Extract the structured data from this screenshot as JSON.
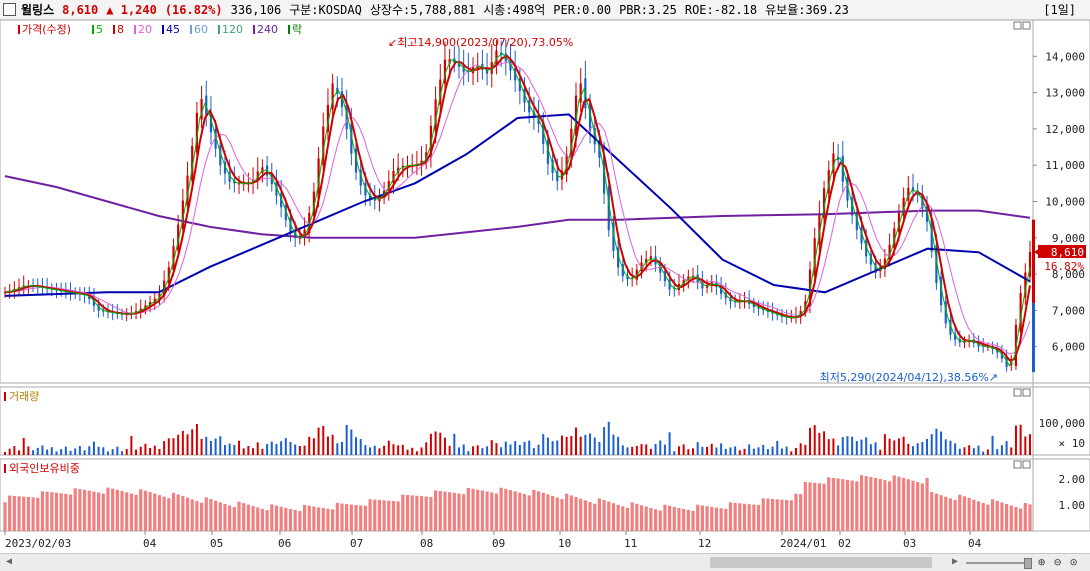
{
  "header": {
    "name": "윌링스",
    "price": "8,610",
    "change": "▲ 1,240",
    "change_pct": "(16.82%)",
    "volume": "336,106",
    "market": "구분:KOSDAQ",
    "shares": "상장수:5,788,881",
    "mcap": "시총:498억",
    "per": "PER:0.00",
    "pbr": "PBR:3.25",
    "roe": "ROE:-82.18",
    "reserve": "유보율:369.23",
    "period": "[1일]"
  },
  "legend": [
    {
      "text": "가격(수정)",
      "color": "#d00000"
    },
    {
      "text": "5",
      "color": "#00b000"
    },
    {
      "text": "8",
      "color": "#d00000"
    },
    {
      "text": "20",
      "color": "#e060e0"
    },
    {
      "text": "45",
      "color": "#0000b0"
    },
    {
      "text": "60",
      "color": "#70a0d0"
    },
    {
      "text": "120",
      "color": "#40a080"
    },
    {
      "text": "240",
      "color": "#7020a0"
    },
    {
      "text": "락",
      "color": "#008000"
    }
  ],
  "annotations": {
    "high": "최고14,900(2023/07/20),73.05%",
    "low": "최저5,290(2024/04/12),38.56%"
  },
  "price_tags": {
    "price": "8,610",
    "pct": "16.82%"
  },
  "panels": {
    "volume_title": "거래량",
    "volume_ticks": [
      "100,000",
      "× 10"
    ],
    "foreign_title": "외국인보유비중",
    "foreign_ticks": [
      "2.00",
      "1.00"
    ]
  },
  "colors": {
    "up": "#d00000",
    "down": "#1a5fd0",
    "ma240": "#7020a0",
    "ma45": "#0000b0",
    "ma8": "#d00000",
    "ma5": "#00b000",
    "foreign_bar": "#f08080"
  },
  "chart_data": {
    "type": "candlestick",
    "y_ticks": [
      "14,000",
      "13,000",
      "12,000",
      "11,000",
      "10,000",
      "9,000",
      "8,000",
      "7,000",
      "6,000"
    ],
    "ylim": [
      5000,
      15000
    ],
    "x_ticks": [
      "2023/02/03",
      "04",
      "05",
      "06",
      "07",
      "08",
      "09",
      "10",
      "11",
      "12",
      "2024/01",
      "02",
      "03",
      "04"
    ],
    "price_path": [
      [
        0,
        7500
      ],
      [
        2,
        7700
      ],
      [
        4,
        7600
      ],
      [
        6,
        7500
      ],
      [
        8,
        7400
      ],
      [
        9,
        7000
      ],
      [
        11,
        6900
      ],
      [
        12,
        6900
      ],
      [
        13,
        7000
      ],
      [
        14,
        7200
      ],
      [
        15,
        7400
      ],
      [
        16,
        8200
      ],
      [
        17,
        9500
      ],
      [
        18,
        11000
      ],
      [
        19,
        13000
      ],
      [
        20,
        12000
      ],
      [
        21,
        11000
      ],
      [
        22,
        10500
      ],
      [
        24,
        10500
      ],
      [
        25,
        11000
      ],
      [
        26,
        10500
      ],
      [
        27,
        9800
      ],
      [
        28,
        9000
      ],
      [
        29,
        9000
      ],
      [
        30,
        10000
      ],
      [
        31,
        12000
      ],
      [
        32,
        13300
      ],
      [
        33,
        12500
      ],
      [
        34,
        11000
      ],
      [
        35,
        10200
      ],
      [
        36,
        10000
      ],
      [
        37,
        10300
      ],
      [
        38,
        10900
      ],
      [
        39,
        11000
      ],
      [
        40,
        11000
      ],
      [
        41,
        11200
      ],
      [
        42,
        12800
      ],
      [
        43,
        14000
      ],
      [
        44,
        13800
      ],
      [
        45,
        13500
      ],
      [
        46,
        13800
      ],
      [
        47,
        13500
      ],
      [
        48,
        14200
      ],
      [
        49,
        13800
      ],
      [
        50,
        13200
      ],
      [
        51,
        12500
      ],
      [
        52,
        12200
      ],
      [
        53,
        11000
      ],
      [
        54,
        10500
      ],
      [
        55,
        11500
      ],
      [
        56,
        13500
      ],
      [
        57,
        12000
      ],
      [
        58,
        11200
      ],
      [
        59,
        9000
      ],
      [
        60,
        8000
      ],
      [
        61,
        7800
      ],
      [
        62,
        8300
      ],
      [
        63,
        8500
      ],
      [
        64,
        8000
      ],
      [
        65,
        7500
      ],
      [
        66,
        7800
      ],
      [
        67,
        8000
      ],
      [
        68,
        7600
      ],
      [
        69,
        7800
      ],
      [
        70,
        7400
      ],
      [
        71,
        7200
      ],
      [
        72,
        7300
      ],
      [
        73,
        7100
      ],
      [
        74,
        7000
      ],
      [
        75,
        6900
      ],
      [
        76,
        6800
      ],
      [
        77,
        6800
      ],
      [
        78,
        7100
      ],
      [
        79,
        9000
      ],
      [
        80,
        10500
      ],
      [
        81,
        11500
      ],
      [
        82,
        10200
      ],
      [
        83,
        9300
      ],
      [
        84,
        8500
      ],
      [
        85,
        8000
      ],
      [
        86,
        8500
      ],
      [
        87,
        9500
      ],
      [
        88,
        10400
      ],
      [
        89,
        10200
      ],
      [
        90,
        9400
      ],
      [
        91,
        7500
      ],
      [
        92,
        6400
      ],
      [
        93,
        6100
      ],
      [
        94,
        6200
      ],
      [
        95,
        6000
      ],
      [
        96,
        6000
      ],
      [
        97,
        5800
      ],
      [
        98,
        5300
      ],
      [
        99,
        7370
      ],
      [
        100,
        8610
      ]
    ],
    "series": [
      {
        "name": "240",
        "points": [
          [
            0,
            10700
          ],
          [
            5,
            10400
          ],
          [
            10,
            10000
          ],
          [
            15,
            9600
          ],
          [
            20,
            9300
          ],
          [
            25,
            9100
          ],
          [
            30,
            9000
          ],
          [
            40,
            9000
          ],
          [
            50,
            9300
          ],
          [
            55,
            9500
          ],
          [
            60,
            9500
          ],
          [
            70,
            9600
          ],
          [
            80,
            9650
          ],
          [
            90,
            9750
          ],
          [
            95,
            9750
          ],
          [
            100,
            9550
          ]
        ]
      },
      {
        "name": "45",
        "points": [
          [
            0,
            7400
          ],
          [
            10,
            7500
          ],
          [
            15,
            7500
          ],
          [
            20,
            8200
          ],
          [
            25,
            8800
          ],
          [
            30,
            9400
          ],
          [
            35,
            10000
          ],
          [
            40,
            10500
          ],
          [
            45,
            11300
          ],
          [
            50,
            12300
          ],
          [
            55,
            12400
          ],
          [
            60,
            11100
          ],
          [
            65,
            9800
          ],
          [
            70,
            8400
          ],
          [
            75,
            7700
          ],
          [
            80,
            7500
          ],
          [
            85,
            8100
          ],
          [
            90,
            8700
          ],
          [
            95,
            8600
          ],
          [
            100,
            7800
          ]
        ]
      }
    ]
  }
}
